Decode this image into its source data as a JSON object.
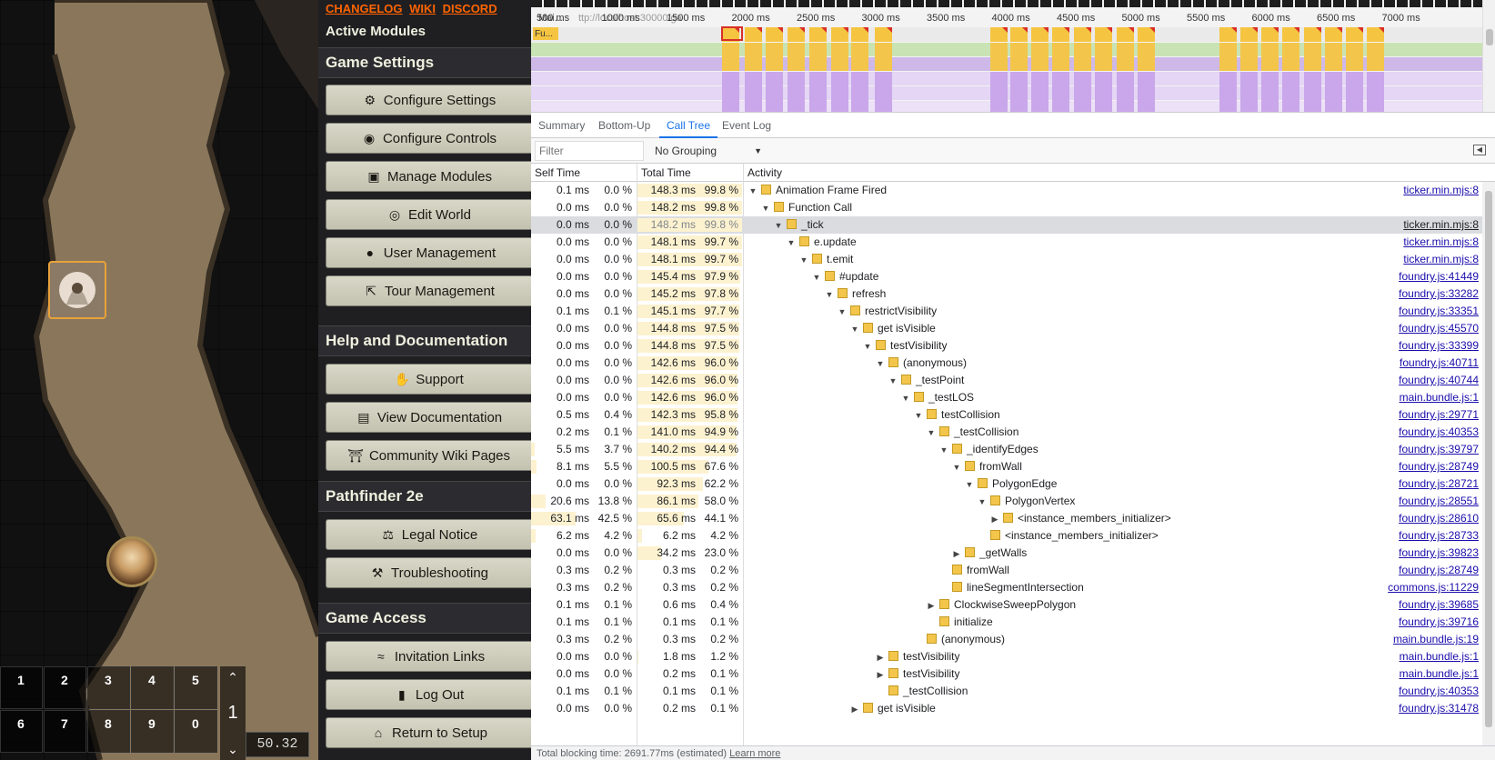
{
  "sidebar": {
    "links": [
      "CHANGELOG",
      "WIKI",
      "DISCORD"
    ],
    "active_modules": "Active Modules",
    "sections": [
      {
        "title": "Game Settings",
        "buttons": [
          {
            "label": "Configure Settings",
            "icon": "gears-icon"
          },
          {
            "label": "Configure Controls",
            "icon": "gamepad-icon"
          },
          {
            "label": "Manage Modules",
            "icon": "cube-icon"
          },
          {
            "label": "Edit World",
            "icon": "globe-icon"
          },
          {
            "label": "User Management",
            "icon": "users-icon"
          },
          {
            "label": "Tour Management",
            "icon": "hiking-icon"
          }
        ]
      },
      {
        "title": "Help and Documentation",
        "buttons": [
          {
            "label": "Support",
            "icon": "handshake-icon"
          },
          {
            "label": "View Documentation",
            "icon": "book-icon"
          },
          {
            "label": "Community Wiki Pages",
            "icon": "landmark-icon"
          }
        ]
      },
      {
        "title": "Pathfinder 2e",
        "buttons": [
          {
            "label": "Legal Notice",
            "icon": "scale-icon"
          },
          {
            "label": "Troubleshooting",
            "icon": "wrench-icon"
          }
        ]
      },
      {
        "title": "Game Access",
        "buttons": [
          {
            "label": "Invitation Links",
            "icon": "wifi-icon"
          },
          {
            "label": "Log Out",
            "icon": "door-icon"
          },
          {
            "label": "Return to Setup",
            "icon": "home-icon"
          }
        ]
      }
    ]
  },
  "hotbar": {
    "slots": [
      "1",
      "2",
      "3",
      "4",
      "5",
      "6",
      "7",
      "8",
      "9",
      "0"
    ],
    "page": "1",
    "fps": "50.32"
  },
  "devtools": {
    "overview": {
      "track_label": "Mai...",
      "url_fragment": "ttp://localhost:30000/ga",
      "first_label": "Fu...",
      "ruler": [
        "500 ms",
        "1000 ms",
        "1500 ms",
        "2000 ms",
        "2500 ms",
        "3000 ms",
        "3500 ms",
        "4000 ms",
        "4500 ms",
        "5000 ms",
        "5500 ms",
        "6000 ms",
        "6500 ms",
        "7000 ms"
      ]
    },
    "tabs": [
      "Summary",
      "Bottom-Up",
      "Call Tree",
      "Event Log"
    ],
    "active_tab": "Call Tree",
    "filter_placeholder": "Filter",
    "grouping": "No Grouping",
    "columns": {
      "self": "Self Time",
      "total": "Total Time",
      "activity": "Activity"
    },
    "rows": [
      {
        "self_ms": "0.1 ms",
        "self_pct": "0.0 %",
        "tot_ms": "148.3 ms",
        "tot_pct": "99.8 %",
        "self_frac": 0.0,
        "tot_frac": 0.998,
        "depth": 0,
        "expand": "open",
        "name": "Animation Frame Fired",
        "src": "ticker.min.mjs:8"
      },
      {
        "self_ms": "0.0 ms",
        "self_pct": "0.0 %",
        "tot_ms": "148.2 ms",
        "tot_pct": "99.8 %",
        "self_frac": 0.0,
        "tot_frac": 0.998,
        "depth": 1,
        "expand": "open",
        "name": "Function Call",
        "src": ""
      },
      {
        "self_ms": "0.0 ms",
        "self_pct": "0.0 %",
        "tot_ms": "148.2 ms",
        "tot_pct": "99.8 %",
        "self_frac": 0.0,
        "tot_frac": 0.998,
        "depth": 2,
        "expand": "open",
        "name": "_tick",
        "src": "ticker.min.mjs:8",
        "selected": true
      },
      {
        "self_ms": "0.0 ms",
        "self_pct": "0.0 %",
        "tot_ms": "148.1 ms",
        "tot_pct": "99.7 %",
        "self_frac": 0.0,
        "tot_frac": 0.997,
        "depth": 3,
        "expand": "open",
        "name": "e.update",
        "src": "ticker.min.mjs:8"
      },
      {
        "self_ms": "0.0 ms",
        "self_pct": "0.0 %",
        "tot_ms": "148.1 ms",
        "tot_pct": "99.7 %",
        "self_frac": 0.0,
        "tot_frac": 0.997,
        "depth": 4,
        "expand": "open",
        "name": "t.emit",
        "src": "ticker.min.mjs:8"
      },
      {
        "self_ms": "0.0 ms",
        "self_pct": "0.0 %",
        "tot_ms": "145.4 ms",
        "tot_pct": "97.9 %",
        "self_frac": 0.0,
        "tot_frac": 0.979,
        "depth": 5,
        "expand": "open",
        "name": "#update",
        "src": "foundry.js:41449"
      },
      {
        "self_ms": "0.0 ms",
        "self_pct": "0.0 %",
        "tot_ms": "145.2 ms",
        "tot_pct": "97.8 %",
        "self_frac": 0.0,
        "tot_frac": 0.978,
        "depth": 6,
        "expand": "open",
        "name": "refresh",
        "src": "foundry.js:33282"
      },
      {
        "self_ms": "0.1 ms",
        "self_pct": "0.1 %",
        "tot_ms": "145.1 ms",
        "tot_pct": "97.7 %",
        "self_frac": 0.001,
        "tot_frac": 0.977,
        "depth": 7,
        "expand": "open",
        "name": "restrictVisibility",
        "src": "foundry.js:33351"
      },
      {
        "self_ms": "0.0 ms",
        "self_pct": "0.0 %",
        "tot_ms": "144.8 ms",
        "tot_pct": "97.5 %",
        "self_frac": 0.0,
        "tot_frac": 0.975,
        "depth": 8,
        "expand": "open",
        "name": "get isVisible",
        "src": "foundry.js:45570"
      },
      {
        "self_ms": "0.0 ms",
        "self_pct": "0.0 %",
        "tot_ms": "144.8 ms",
        "tot_pct": "97.5 %",
        "self_frac": 0.0,
        "tot_frac": 0.975,
        "depth": 9,
        "expand": "open",
        "name": "testVisibility",
        "src": "foundry.js:33399"
      },
      {
        "self_ms": "0.0 ms",
        "self_pct": "0.0 %",
        "tot_ms": "142.6 ms",
        "tot_pct": "96.0 %",
        "self_frac": 0.0,
        "tot_frac": 0.96,
        "depth": 10,
        "expand": "open",
        "name": "(anonymous)",
        "src": "foundry.js:40711"
      },
      {
        "self_ms": "0.0 ms",
        "self_pct": "0.0 %",
        "tot_ms": "142.6 ms",
        "tot_pct": "96.0 %",
        "self_frac": 0.0,
        "tot_frac": 0.96,
        "depth": 11,
        "expand": "open",
        "name": "_testPoint",
        "src": "foundry.js:40744"
      },
      {
        "self_ms": "0.0 ms",
        "self_pct": "0.0 %",
        "tot_ms": "142.6 ms",
        "tot_pct": "96.0 %",
        "self_frac": 0.0,
        "tot_frac": 0.96,
        "depth": 12,
        "expand": "open",
        "name": "_testLOS",
        "src": "main.bundle.js:1"
      },
      {
        "self_ms": "0.5 ms",
        "self_pct": "0.4 %",
        "tot_ms": "142.3 ms",
        "tot_pct": "95.8 %",
        "self_frac": 0.004,
        "tot_frac": 0.958,
        "depth": 13,
        "expand": "open",
        "name": "testCollision",
        "src": "foundry.js:29771"
      },
      {
        "self_ms": "0.2 ms",
        "self_pct": "0.1 %",
        "tot_ms": "141.0 ms",
        "tot_pct": "94.9 %",
        "self_frac": 0.001,
        "tot_frac": 0.949,
        "depth": 14,
        "expand": "open",
        "name": "_testCollision",
        "src": "foundry.js:40353"
      },
      {
        "self_ms": "5.5 ms",
        "self_pct": "3.7 %",
        "tot_ms": "140.2 ms",
        "tot_pct": "94.4 %",
        "self_frac": 0.037,
        "tot_frac": 0.944,
        "depth": 15,
        "expand": "open",
        "name": "_identifyEdges",
        "src": "foundry.js:39797"
      },
      {
        "self_ms": "8.1 ms",
        "self_pct": "5.5 %",
        "tot_ms": "100.5 ms",
        "tot_pct": "67.6 %",
        "self_frac": 0.055,
        "tot_frac": 0.676,
        "depth": 16,
        "expand": "open",
        "name": "fromWall",
        "src": "foundry.js:28749"
      },
      {
        "self_ms": "0.0 ms",
        "self_pct": "0.0 %",
        "tot_ms": "92.3 ms",
        "tot_pct": "62.2 %",
        "self_frac": 0.0,
        "tot_frac": 0.622,
        "depth": 17,
        "expand": "open",
        "name": "PolygonEdge",
        "src": "foundry.js:28721"
      },
      {
        "self_ms": "20.6 ms",
        "self_pct": "13.8 %",
        "tot_ms": "86.1 ms",
        "tot_pct": "58.0 %",
        "self_frac": 0.138,
        "tot_frac": 0.58,
        "depth": 18,
        "expand": "open",
        "name": "PolygonVertex",
        "src": "foundry.js:28551"
      },
      {
        "self_ms": "63.1 ms",
        "self_pct": "42.5 %",
        "tot_ms": "65.6 ms",
        "tot_pct": "44.1 %",
        "self_frac": 0.425,
        "tot_frac": 0.441,
        "depth": 19,
        "expand": "closed",
        "name": "<instance_members_initializer>",
        "src": "foundry.js:28610"
      },
      {
        "self_ms": "6.2 ms",
        "self_pct": "4.2 %",
        "tot_ms": "6.2 ms",
        "tot_pct": "4.2 %",
        "self_frac": 0.042,
        "tot_frac": 0.042,
        "depth": 18,
        "expand": "none",
        "name": "<instance_members_initializer>",
        "src": "foundry.js:28733"
      },
      {
        "self_ms": "0.0 ms",
        "self_pct": "0.0 %",
        "tot_ms": "34.2 ms",
        "tot_pct": "23.0 %",
        "self_frac": 0.0,
        "tot_frac": 0.23,
        "depth": 16,
        "expand": "closed",
        "name": "_getWalls",
        "src": "foundry.js:39823"
      },
      {
        "self_ms": "0.3 ms",
        "self_pct": "0.2 %",
        "tot_ms": "0.3 ms",
        "tot_pct": "0.2 %",
        "self_frac": 0.002,
        "tot_frac": 0.002,
        "depth": 15,
        "expand": "none",
        "name": "fromWall",
        "src": "foundry.js:28749"
      },
      {
        "self_ms": "0.3 ms",
        "self_pct": "0.2 %",
        "tot_ms": "0.3 ms",
        "tot_pct": "0.2 %",
        "self_frac": 0.002,
        "tot_frac": 0.002,
        "depth": 15,
        "expand": "none",
        "name": "lineSegmentIntersection",
        "src": "commons.js:11229"
      },
      {
        "self_ms": "0.1 ms",
        "self_pct": "0.1 %",
        "tot_ms": "0.6 ms",
        "tot_pct": "0.4 %",
        "self_frac": 0.001,
        "tot_frac": 0.004,
        "depth": 14,
        "expand": "closed",
        "name": "ClockwiseSweepPolygon",
        "src": "foundry.js:39685"
      },
      {
        "self_ms": "0.1 ms",
        "self_pct": "0.1 %",
        "tot_ms": "0.1 ms",
        "tot_pct": "0.1 %",
        "self_frac": 0.001,
        "tot_frac": 0.001,
        "depth": 14,
        "expand": "none",
        "name": "initialize",
        "src": "foundry.js:39716"
      },
      {
        "self_ms": "0.3 ms",
        "self_pct": "0.2 %",
        "tot_ms": "0.3 ms",
        "tot_pct": "0.2 %",
        "self_frac": 0.002,
        "tot_frac": 0.002,
        "depth": 13,
        "expand": "none",
        "name": "(anonymous)",
        "src": "main.bundle.js:19"
      },
      {
        "self_ms": "0.0 ms",
        "self_pct": "0.0 %",
        "tot_ms": "1.8 ms",
        "tot_pct": "1.2 %",
        "self_frac": 0.0,
        "tot_frac": 0.012,
        "depth": 10,
        "expand": "closed",
        "name": "testVisibility",
        "src": "main.bundle.js:1"
      },
      {
        "self_ms": "0.0 ms",
        "self_pct": "0.0 %",
        "tot_ms": "0.2 ms",
        "tot_pct": "0.1 %",
        "self_frac": 0.0,
        "tot_frac": 0.001,
        "depth": 10,
        "expand": "closed",
        "name": "testVisibility",
        "src": "main.bundle.js:1"
      },
      {
        "self_ms": "0.1 ms",
        "self_pct": "0.1 %",
        "tot_ms": "0.1 ms",
        "tot_pct": "0.1 %",
        "self_frac": 0.001,
        "tot_frac": 0.001,
        "depth": 10,
        "expand": "none",
        "name": "_testCollision",
        "src": "foundry.js:40353"
      },
      {
        "self_ms": "0.0 ms",
        "self_pct": "0.0 %",
        "tot_ms": "0.2 ms",
        "tot_pct": "0.1 %",
        "self_frac": 0.0,
        "tot_frac": 0.001,
        "depth": 8,
        "expand": "closed",
        "name": "get isVisible",
        "src": "foundry.js:31478"
      }
    ],
    "status": "Total blocking time: 2691.77ms (estimated)",
    "learn_more": "Learn more"
  }
}
